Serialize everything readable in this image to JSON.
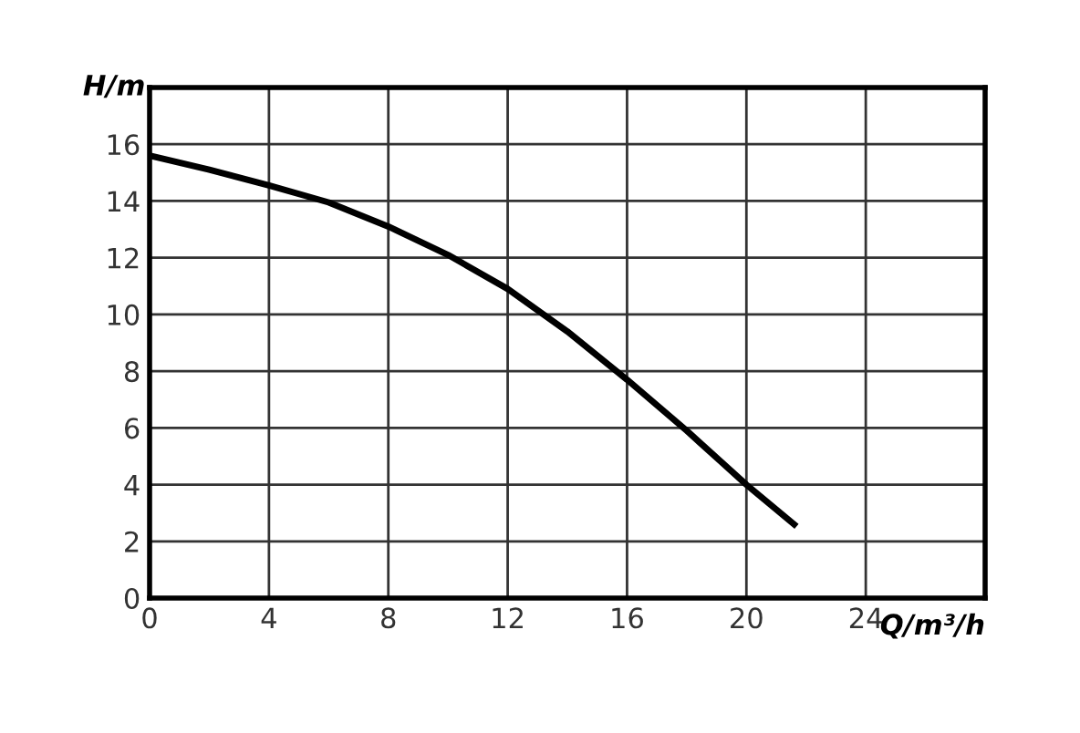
{
  "chart_data": {
    "type": "line",
    "xlabel": "Q/m³/h",
    "ylabel": "H/m",
    "x": [
      0,
      2,
      4,
      6,
      8,
      10,
      12,
      14,
      16,
      18,
      20,
      21.6
    ],
    "series": [
      {
        "color": "#000000",
        "values": [
          15.6,
          15.1,
          14.55,
          13.95,
          13.1,
          12.1,
          10.9,
          9.4,
          7.7,
          5.9,
          4.0,
          2.6
        ]
      }
    ],
    "xlim": [
      0,
      28
    ],
    "ylim": [
      0,
      18
    ],
    "xticks": [
      0,
      4,
      8,
      12,
      16,
      20,
      24
    ],
    "yticks": [
      0,
      2,
      4,
      6,
      8,
      10,
      12,
      14,
      16
    ],
    "grid": true,
    "marker": "none",
    "line_style": "solid"
  }
}
